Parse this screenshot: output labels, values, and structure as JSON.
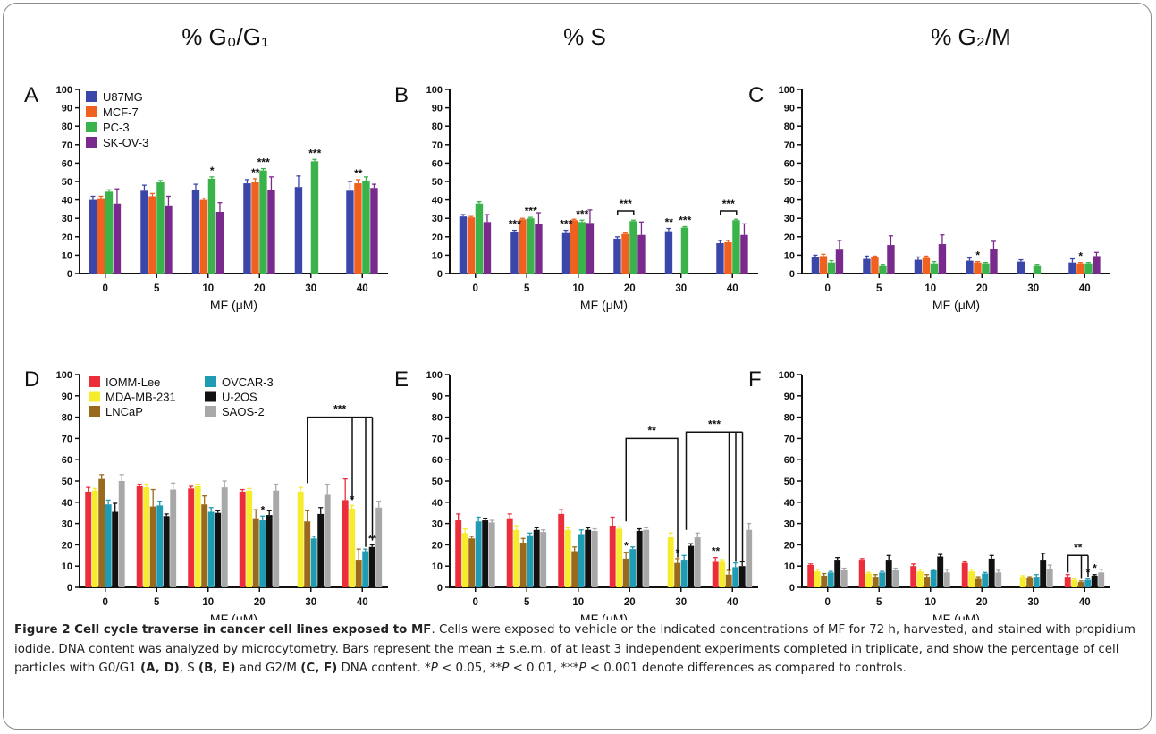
{
  "headers": {
    "g0g1": "% G₀/G₁",
    "s": "% S",
    "g2m": "% G₂/M"
  },
  "colors": {
    "U87MG": "#3b47a8",
    "MCF-7": "#f0601e",
    "PC-3": "#3ab34a",
    "SK-OV-3": "#7a2a8c",
    "IOMM-Lee": "#ec2d3a",
    "MDA-MB-231": "#f4ec2c",
    "LNCaP": "#9a6a1c",
    "OVCAR-3": "#1f9bb4",
    "U-2OS": "#111111",
    "SAOS-2": "#a8a8a8"
  },
  "chart_data": [
    {
      "panel": "A",
      "type": "bar",
      "xlabel": "MF (μM)",
      "ylim": [
        0,
        100
      ],
      "yticks": [
        0,
        10,
        20,
        30,
        40,
        50,
        60,
        70,
        80,
        90,
        100
      ],
      "categories": [
        "0",
        "5",
        "10",
        "20",
        "30",
        "40"
      ],
      "legend": {
        "placement": "top-left",
        "columns": 1
      },
      "series": [
        {
          "name": "U87MG",
          "values": [
            40,
            45,
            45.5,
            49,
            47,
            45
          ],
          "errors": [
            2,
            3,
            3,
            2,
            6,
            5
          ]
        },
        {
          "name": "MCF-7",
          "values": [
            40.5,
            42,
            40,
            49.5,
            null,
            49
          ],
          "errors": [
            1.5,
            1.5,
            1,
            2,
            null,
            2
          ]
        },
        {
          "name": "PC-3",
          "values": [
            44.5,
            49.5,
            51.5,
            56,
            61,
            50.5
          ],
          "errors": [
            1,
            1,
            1,
            1,
            1,
            2
          ]
        },
        {
          "name": "SK-OV-3",
          "values": [
            38,
            37,
            33.5,
            45.5,
            null,
            46.5
          ],
          "errors": [
            8,
            5,
            5,
            7,
            null,
            2
          ]
        }
      ],
      "annotations": [
        {
          "text": "*",
          "category": "10",
          "series": 2
        },
        {
          "text": "**",
          "category": "20",
          "series": 1
        },
        {
          "text": "***",
          "category": "20",
          "series": 2
        },
        {
          "text": "***",
          "category": "30",
          "series": 2
        },
        {
          "text": "**",
          "category": "40",
          "series": 1
        }
      ]
    },
    {
      "panel": "B",
      "type": "bar",
      "xlabel": "MF (μM)",
      "ylim": [
        0,
        100
      ],
      "yticks": [
        0,
        10,
        20,
        30,
        40,
        50,
        60,
        70,
        80,
        90,
        100
      ],
      "categories": [
        "0",
        "5",
        "10",
        "20",
        "30",
        "40"
      ],
      "series": [
        {
          "name": "U87MG",
          "values": [
            31,
            22.5,
            22,
            19,
            23,
            16.5
          ],
          "errors": [
            1,
            1,
            1.5,
            1,
            1.5,
            1.5
          ]
        },
        {
          "name": "MCF-7",
          "values": [
            30.5,
            29.5,
            29,
            21.5,
            null,
            17
          ],
          "errors": [
            0.5,
            0.5,
            0.5,
            0.5,
            null,
            1
          ]
        },
        {
          "name": "PC-3",
          "values": [
            38,
            30,
            28,
            28.5,
            25,
            29
          ],
          "errors": [
            1,
            0.5,
            1,
            0.5,
            0.5,
            0.5
          ]
        },
        {
          "name": "SK-OV-3",
          "values": [
            28,
            27,
            27.5,
            21,
            null,
            21
          ],
          "errors": [
            4,
            6,
            7,
            7,
            null,
            6
          ]
        }
      ],
      "annotations": [
        {
          "text": "***",
          "category": "5",
          "series": 0
        },
        {
          "text": "***",
          "category": "5",
          "series": 2
        },
        {
          "text": "***",
          "category": "10",
          "series": 0
        },
        {
          "text": "***",
          "category": "10",
          "series": 2
        },
        {
          "text": "***",
          "category": "20",
          "bracket": [
            0,
            2
          ]
        },
        {
          "text": "**",
          "category": "30",
          "series": 0
        },
        {
          "text": "***",
          "category": "30",
          "series": 2
        },
        {
          "text": "***",
          "category": "40",
          "bracket": [
            0,
            2
          ]
        }
      ]
    },
    {
      "panel": "C",
      "type": "bar",
      "xlabel": "MF (μM)",
      "ylim": [
        0,
        100
      ],
      "yticks": [
        0,
        10,
        20,
        30,
        40,
        50,
        60,
        70,
        80,
        90,
        100
      ],
      "categories": [
        "0",
        "5",
        "10",
        "20",
        "30",
        "40"
      ],
      "series": [
        {
          "name": "U87MG",
          "values": [
            9,
            8,
            7.5,
            7,
            6.5,
            6
          ],
          "errors": [
            1,
            1.5,
            1.5,
            1.5,
            1,
            2
          ]
        },
        {
          "name": "MCF-7",
          "values": [
            9.5,
            9,
            8.5,
            6,
            null,
            5.5
          ],
          "errors": [
            1,
            0.5,
            1,
            0.5,
            null,
            0.5
          ]
        },
        {
          "name": "PC-3",
          "values": [
            6,
            4.5,
            5.5,
            5.5,
            4.5,
            5.5
          ],
          "errors": [
            1,
            0.5,
            1,
            0.5,
            0.5,
            0.5
          ]
        },
        {
          "name": "SK-OV-3",
          "values": [
            13,
            15.5,
            16,
            13.5,
            null,
            9.5
          ],
          "errors": [
            5,
            5,
            5,
            4,
            null,
            2
          ]
        }
      ],
      "annotations": [
        {
          "text": "*",
          "category": "20",
          "series": 1
        },
        {
          "text": "*",
          "category": "40",
          "series": 1
        }
      ]
    },
    {
      "panel": "D",
      "type": "bar",
      "xlabel": "MF (μM)",
      "ylim": [
        0,
        100
      ],
      "yticks": [
        0,
        10,
        20,
        30,
        40,
        50,
        60,
        70,
        80,
        90,
        100
      ],
      "categories": [
        "0",
        "5",
        "10",
        "20",
        "30",
        "40"
      ],
      "legend": {
        "placement": "top-left",
        "columns": 2
      },
      "series": [
        {
          "name": "IOMM-Lee",
          "values": [
            45,
            47.5,
            46.5,
            45,
            null,
            41
          ],
          "errors": [
            2,
            1,
            1,
            1,
            null,
            10
          ]
        },
        {
          "name": "MDA-MB-231",
          "values": [
            45.5,
            47,
            47.5,
            45.5,
            45,
            37
          ],
          "errors": [
            1,
            1.5,
            1,
            1,
            2,
            1.5
          ]
        },
        {
          "name": "LNCaP",
          "values": [
            51,
            38,
            39,
            32.5,
            31,
            13
          ],
          "errors": [
            2,
            8,
            4,
            4,
            5,
            5
          ]
        },
        {
          "name": "OVCAR-3",
          "values": [
            39,
            38.5,
            35.5,
            31.5,
            23,
            17
          ],
          "errors": [
            2,
            2,
            2,
            2,
            1,
            1
          ]
        },
        {
          "name": "U-2OS",
          "values": [
            35.5,
            33.5,
            35,
            34,
            34.5,
            19
          ],
          "errors": [
            4,
            1,
            1,
            2,
            3,
            1
          ]
        },
        {
          "name": "SAOS-2",
          "values": [
            50,
            46,
            47,
            45.5,
            43.5,
            37.5
          ],
          "errors": [
            3,
            3,
            3,
            3,
            5,
            3
          ]
        }
      ],
      "annotations": [
        {
          "text": "*",
          "category": "20",
          "series": 3
        },
        {
          "text": "*",
          "category": "40",
          "series": 1
        },
        {
          "text": "**",
          "category": "40",
          "series": 4
        },
        {
          "text": "***",
          "bracket": "30-40"
        }
      ]
    },
    {
      "panel": "E",
      "type": "bar",
      "xlabel": "MF (μM)",
      "ylim": [
        0,
        100
      ],
      "yticks": [
        0,
        10,
        20,
        30,
        40,
        50,
        60,
        70,
        80,
        90,
        100
      ],
      "categories": [
        "0",
        "5",
        "10",
        "20",
        "30",
        "40"
      ],
      "series": [
        {
          "name": "IOMM-Lee",
          "values": [
            31.5,
            32.5,
            34.5,
            29,
            null,
            12
          ],
          "errors": [
            3,
            2,
            2,
            4,
            null,
            2
          ]
        },
        {
          "name": "MDA-MB-231",
          "values": [
            25.5,
            27,
            27,
            27.5,
            23.5,
            12
          ],
          "errors": [
            2,
            2,
            1,
            1,
            2,
            1
          ]
        },
        {
          "name": "LNCaP",
          "values": [
            23,
            21,
            17,
            13.5,
            11.5,
            6
          ],
          "errors": [
            1,
            2,
            2,
            3,
            2,
            2
          ]
        },
        {
          "name": "OVCAR-3",
          "values": [
            31,
            24.5,
            25,
            18,
            13,
            9.5
          ],
          "errors": [
            2,
            1,
            2,
            1,
            2,
            2
          ]
        },
        {
          "name": "U-2OS",
          "values": [
            31.5,
            27,
            27,
            26.5,
            19.5,
            10
          ],
          "errors": [
            1,
            1,
            1,
            1,
            1,
            2
          ]
        },
        {
          "name": "SAOS-2",
          "values": [
            30.5,
            26,
            26.5,
            27,
            23.5,
            27
          ],
          "errors": [
            1,
            1,
            1,
            1,
            2,
            3
          ]
        }
      ],
      "annotations": [
        {
          "text": "*",
          "category": "20",
          "series": 2
        },
        {
          "text": "*",
          "category": "30",
          "series": 2
        },
        {
          "text": "**",
          "category": "40",
          "series": 0
        },
        {
          "text": "**",
          "bracket": "20-30"
        },
        {
          "text": "***",
          "bracket": "30-40"
        }
      ]
    },
    {
      "panel": "F",
      "type": "bar",
      "xlabel": "MF (μM)",
      "ylim": [
        0,
        100
      ],
      "yticks": [
        0,
        10,
        20,
        30,
        40,
        50,
        60,
        70,
        80,
        90,
        100
      ],
      "categories": [
        "0",
        "5",
        "10",
        "20",
        "30",
        "40"
      ],
      "series": [
        {
          "name": "IOMM-Lee",
          "values": [
            10.5,
            13,
            10,
            11.5,
            null,
            5
          ],
          "errors": [
            0.5,
            0.5,
            1,
            0.5,
            null,
            1
          ]
        },
        {
          "name": "MDA-MB-231",
          "values": [
            7.5,
            6.5,
            7.5,
            7.5,
            5,
            3.5
          ],
          "errors": [
            1,
            0.5,
            1,
            1,
            0.5,
            0.5
          ]
        },
        {
          "name": "LNCaP",
          "values": [
            5.5,
            5,
            5,
            4,
            4.5,
            2.5
          ],
          "errors": [
            1,
            1,
            1,
            1,
            0.5,
            0.5
          ]
        },
        {
          "name": "OVCAR-3",
          "values": [
            7,
            7,
            8,
            6.5,
            5,
            3.5
          ],
          "errors": [
            0.5,
            0.5,
            0.5,
            0.5,
            1,
            0.5
          ]
        },
        {
          "name": "U-2OS",
          "values": [
            13,
            13,
            14.5,
            13.5,
            13,
            5.5
          ],
          "errors": [
            1,
            2,
            1,
            1.5,
            3,
            0.5
          ]
        },
        {
          "name": "SAOS-2",
          "values": [
            8,
            8,
            7,
            7,
            8.5,
            7
          ],
          "errors": [
            1,
            1,
            1.5,
            1,
            2,
            1.5
          ]
        }
      ],
      "annotations": [
        {
          "text": "*",
          "category": "40",
          "series": 3
        },
        {
          "text": "*",
          "category": "40",
          "series": 4
        },
        {
          "text": "**",
          "bracket": "40"
        }
      ]
    }
  ],
  "caption": {
    "title": "Figure 2 Cell cycle traverse in cancer cell lines exposed to MF",
    "body1": ". Cells were exposed to vehicle or the indicated concentrations of MF for 72 h, harvested, and stained with propidium iodide. DNA content was analyzed by microcytometry. Bars represent the mean ± s.e.m. of at least 3 independent experiments completed in triplicate, and show the percentage of cell particles with G0/G1 ",
    "ad": "(A, D)",
    "body2": ", S ",
    "be": "(B, E)",
    "body3": " and G2/M ",
    "cf": "(C, F)",
    "body4": " DNA content. *",
    "p": "P",
    "body5": " < 0.05, **",
    "body6": " < 0.01, ***",
    "body7": " < 0.001 denote differences as compared to controls."
  }
}
